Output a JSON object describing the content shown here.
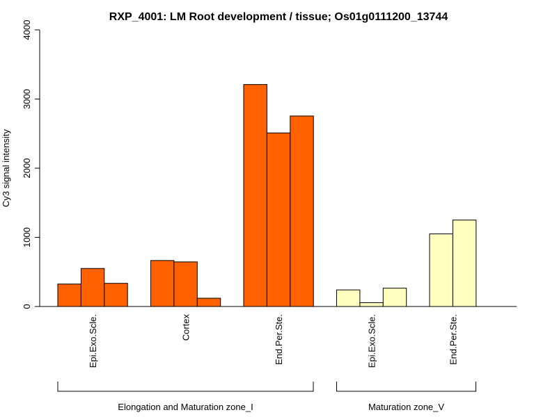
{
  "chart_data": {
    "type": "bar",
    "title": "RXP_4001: LM Root development / tissue; Os01g0111200_13744",
    "xlabel": "",
    "ylabel": "Cy3 signal intensity",
    "ylim": [
      0,
      4000
    ],
    "yticks": [
      0,
      1000,
      2000,
      3000,
      4000
    ],
    "grid": false,
    "bar_groups": [
      {
        "category": "Epi.Exo.Scle.",
        "group": "Elongation and Maturation zone_I",
        "color": "#FF6000",
        "values": [
          325,
          550,
          335
        ]
      },
      {
        "category": "Cortex",
        "group": "Elongation and Maturation zone_I",
        "color": "#FF6000",
        "values": [
          665,
          645,
          120
        ]
      },
      {
        "category": "End.Per.Ste.",
        "group": "Elongation and Maturation zone_I",
        "color": "#FF6000",
        "values": [
          3210,
          2510,
          2755
        ]
      },
      {
        "category": "Epi.Exo.Scle.",
        "group": "Maturation zone_V",
        "color": "#FFFFC0",
        "values": [
          240,
          55,
          265
        ]
      },
      {
        "category": "End.Per.Ste.",
        "group": "Maturation zone_V",
        "color": "#FFFFC0",
        "values": [
          1050,
          1250
        ]
      }
    ],
    "zone_labels": [
      "Elongation and Maturation zone_I",
      "Maturation zone_V"
    ]
  }
}
